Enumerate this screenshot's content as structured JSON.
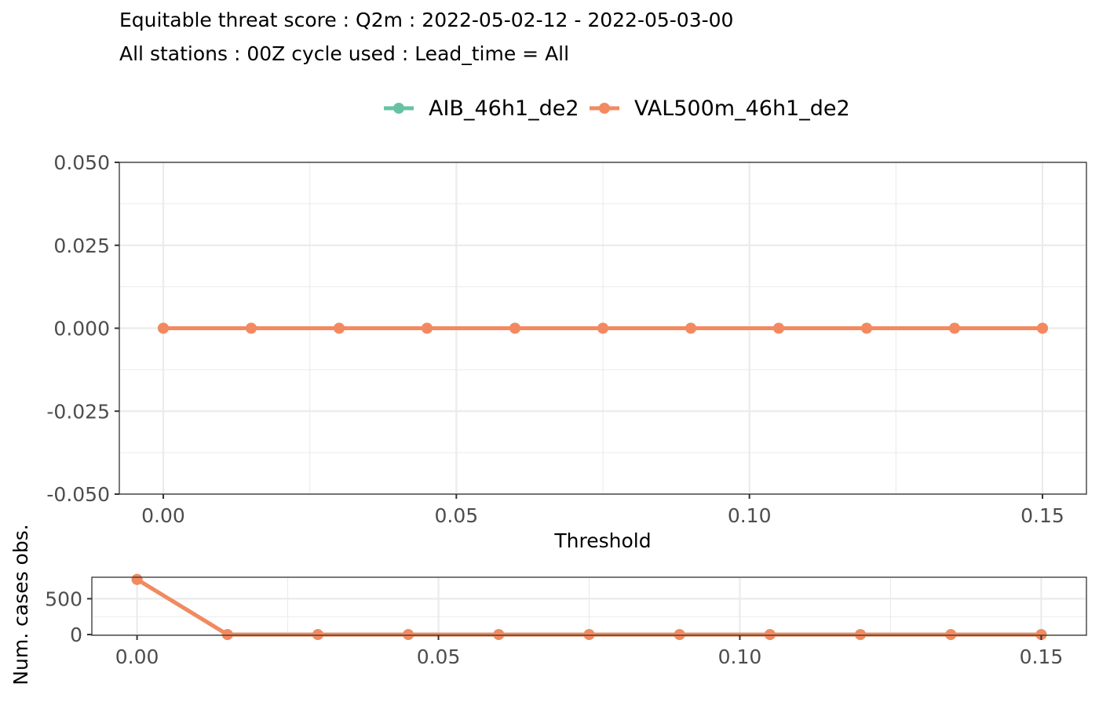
{
  "title": "Equitable threat score : Q2m : 2022-05-02-12 - 2022-05-03-00",
  "subtitle": "All stations : 00Z cycle used : Lead_time = All",
  "colors": {
    "AIB_46h1_de2": "#66c2a5",
    "VAL500m_46h1_de2": "#f4895f"
  },
  "chart_data": [
    {
      "type": "line",
      "panel": "main",
      "xlabel": "Threshold",
      "ylabel": "",
      "xlim": [
        -0.0075,
        0.1575
      ],
      "ylim": [
        -0.05,
        0.05
      ],
      "x_ticks": [
        0.0,
        0.05,
        0.1,
        0.15
      ],
      "x_tick_labels": [
        "0.00",
        "0.05",
        "0.10",
        "0.15"
      ],
      "y_ticks": [
        -0.05,
        -0.025,
        0.0,
        0.025,
        0.05
      ],
      "y_tick_labels": [
        "-0.050",
        "-0.025",
        "0.000",
        "0.025",
        "0.050"
      ],
      "grid": true,
      "legend_position": "top",
      "x": [
        0.0,
        0.015,
        0.03,
        0.045,
        0.06,
        0.075,
        0.09,
        0.105,
        0.12,
        0.135,
        0.15
      ],
      "series": [
        {
          "name": "AIB_46h1_de2",
          "values": [
            0,
            0,
            0,
            0,
            0,
            0,
            0,
            0,
            0,
            0,
            0
          ]
        },
        {
          "name": "VAL500m_46h1_de2",
          "values": [
            0,
            0,
            0,
            0,
            0,
            0,
            0,
            0,
            0,
            0,
            0
          ]
        }
      ]
    },
    {
      "type": "line",
      "panel": "counts",
      "xlabel": "",
      "ylabel": "Num. cases obs.",
      "xlim": [
        -0.0075,
        0.1575
      ],
      "ylim": [
        -10,
        800
      ],
      "x_ticks": [
        0.0,
        0.05,
        0.1,
        0.15
      ],
      "x_tick_labels": [
        "0.00",
        "0.05",
        "0.10",
        "0.15"
      ],
      "y_ticks": [
        0,
        500
      ],
      "y_tick_labels": [
        "0",
        "500"
      ],
      "grid": true,
      "x": [
        0.0,
        0.015,
        0.03,
        0.045,
        0.06,
        0.075,
        0.09,
        0.105,
        0.12,
        0.135,
        0.15
      ],
      "series": [
        {
          "name": "AIB_46h1_de2",
          "values": [
            770,
            0,
            0,
            0,
            0,
            0,
            0,
            0,
            0,
            0,
            0
          ]
        },
        {
          "name": "VAL500m_46h1_de2",
          "values": [
            770,
            0,
            0,
            0,
            0,
            0,
            0,
            0,
            0,
            0,
            0
          ]
        }
      ]
    }
  ]
}
